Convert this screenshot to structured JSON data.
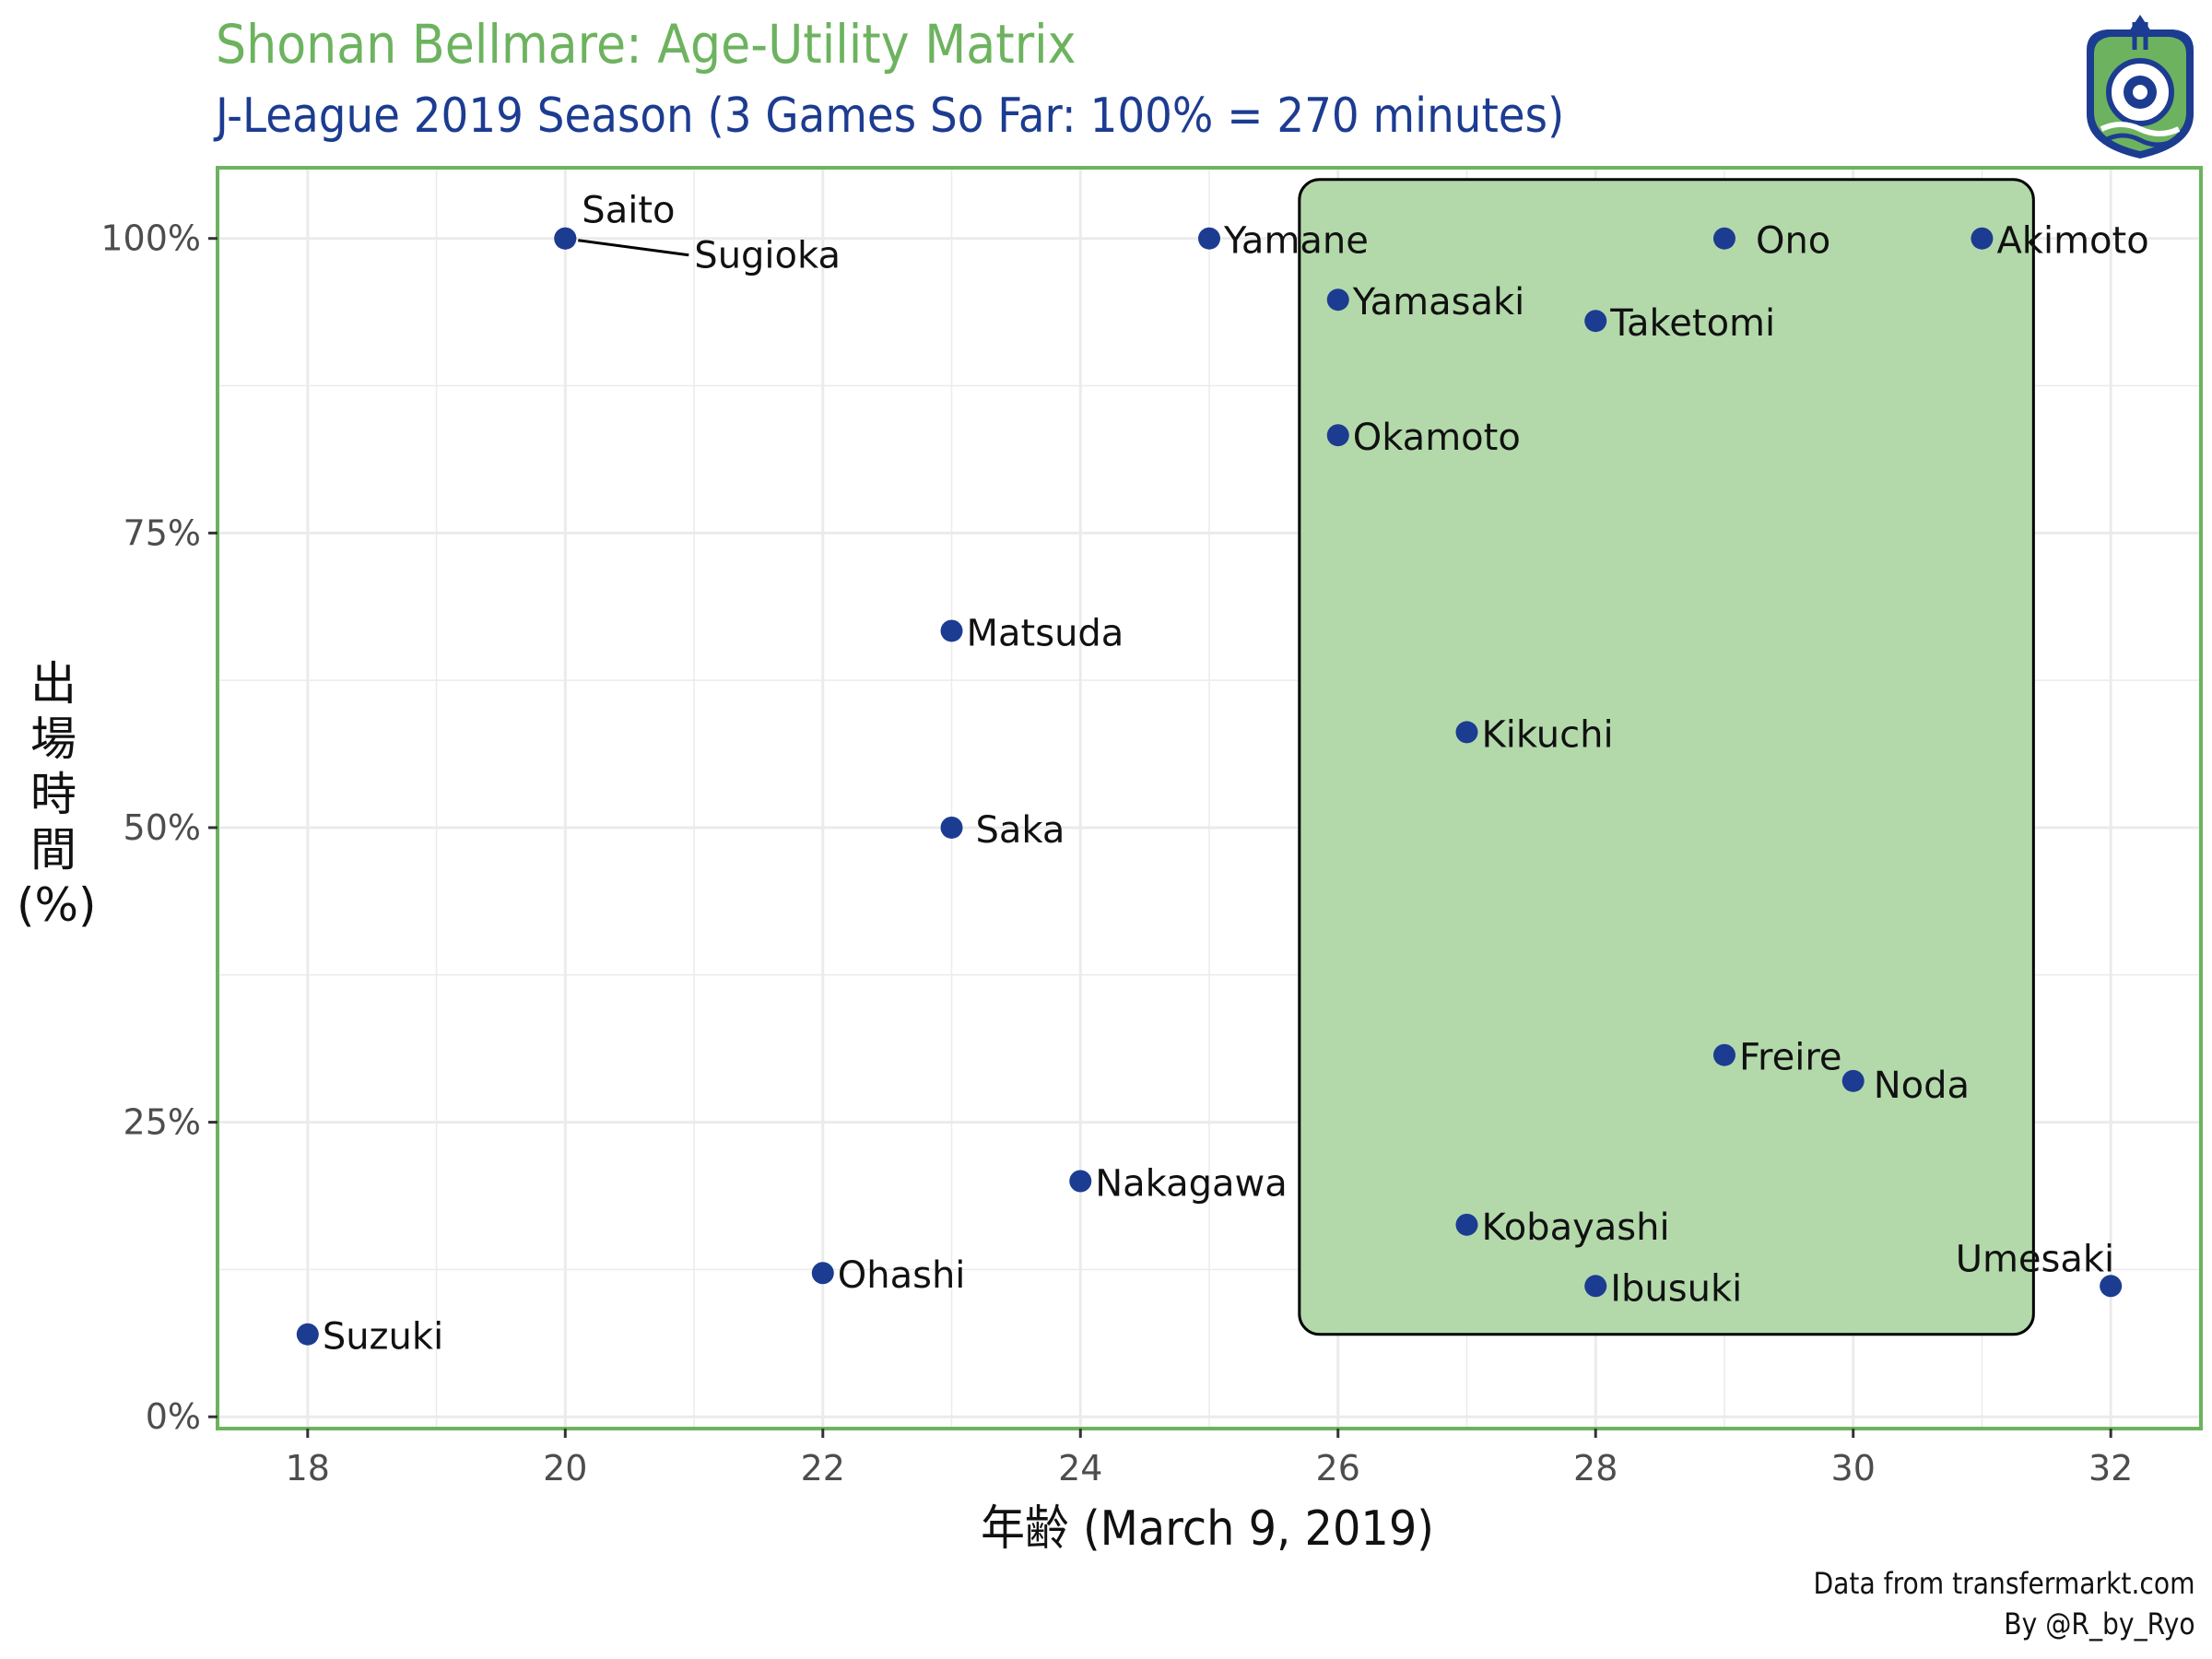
{
  "header": {
    "title": "Shonan Bellmare: Age-Utility Matrix",
    "subtitle": "J-League 2019 Season (3 Games So Far: 100% = 270 minutes)"
  },
  "caption": {
    "line1": "Data from transfermarkt.com",
    "line2": "By @R_by_Ryo"
  },
  "colors": {
    "title": "#6db35f",
    "subtitle": "#1c3c91",
    "panel_border": "#6db35f",
    "point": "#1c3c91",
    "highlight_fill": "#b3d9aa",
    "grid": "#ebebeb"
  },
  "logo_icon": "shonan-bellmare-crest-icon",
  "chart_data": {
    "type": "scatter",
    "xlabel": "年齢 (March 9, 2019)",
    "ylabel_chars": [
      "出",
      "場",
      "時",
      "間",
      "(%)"
    ],
    "xlim": [
      17.3,
      32.7
    ],
    "ylim": [
      -0.01,
      1.06
    ],
    "x_ticks": [
      18,
      20,
      22,
      24,
      26,
      28,
      30,
      32
    ],
    "y_ticks": [
      0,
      0.25,
      0.5,
      0.75,
      1.0
    ],
    "y_tick_labels": [
      "0%",
      "25%",
      "50%",
      "75%",
      "100%"
    ],
    "grid": true,
    "highlight_region": {
      "x": [
        25.7,
        31.4
      ],
      "y": [
        0.07,
        1.05
      ]
    },
    "points": [
      {
        "name": "Saito",
        "age": 20,
        "minutes_pct": 1.0
      },
      {
        "name": "Sugioka",
        "age": 20,
        "minutes_pct": 1.0
      },
      {
        "name": "Yamane",
        "age": 25,
        "minutes_pct": 1.0
      },
      {
        "name": "Ono",
        "age": 29,
        "minutes_pct": 1.0
      },
      {
        "name": "Akimoto",
        "age": 31,
        "minutes_pct": 1.0
      },
      {
        "name": "Yamasaki",
        "age": 26,
        "minutes_pct": 0.948
      },
      {
        "name": "Taketomi",
        "age": 28,
        "minutes_pct": 0.93
      },
      {
        "name": "Okamoto",
        "age": 26,
        "minutes_pct": 0.833
      },
      {
        "name": "Matsuda",
        "age": 23,
        "minutes_pct": 0.667
      },
      {
        "name": "Kikuchi",
        "age": 27,
        "minutes_pct": 0.581
      },
      {
        "name": "Saka",
        "age": 23,
        "minutes_pct": 0.5
      },
      {
        "name": "Freire",
        "age": 29,
        "minutes_pct": 0.307
      },
      {
        "name": "Noda",
        "age": 30,
        "minutes_pct": 0.285
      },
      {
        "name": "Nakagawa",
        "age": 24,
        "minutes_pct": 0.2
      },
      {
        "name": "Kobayashi",
        "age": 27,
        "minutes_pct": 0.163
      },
      {
        "name": "Ohashi",
        "age": 22,
        "minutes_pct": 0.122
      },
      {
        "name": "Ibusuki",
        "age": 28,
        "minutes_pct": 0.111
      },
      {
        "name": "Umesaki",
        "age": 32,
        "minutes_pct": 0.111
      },
      {
        "name": "Suzuki",
        "age": 18,
        "minutes_pct": 0.07
      }
    ]
  }
}
